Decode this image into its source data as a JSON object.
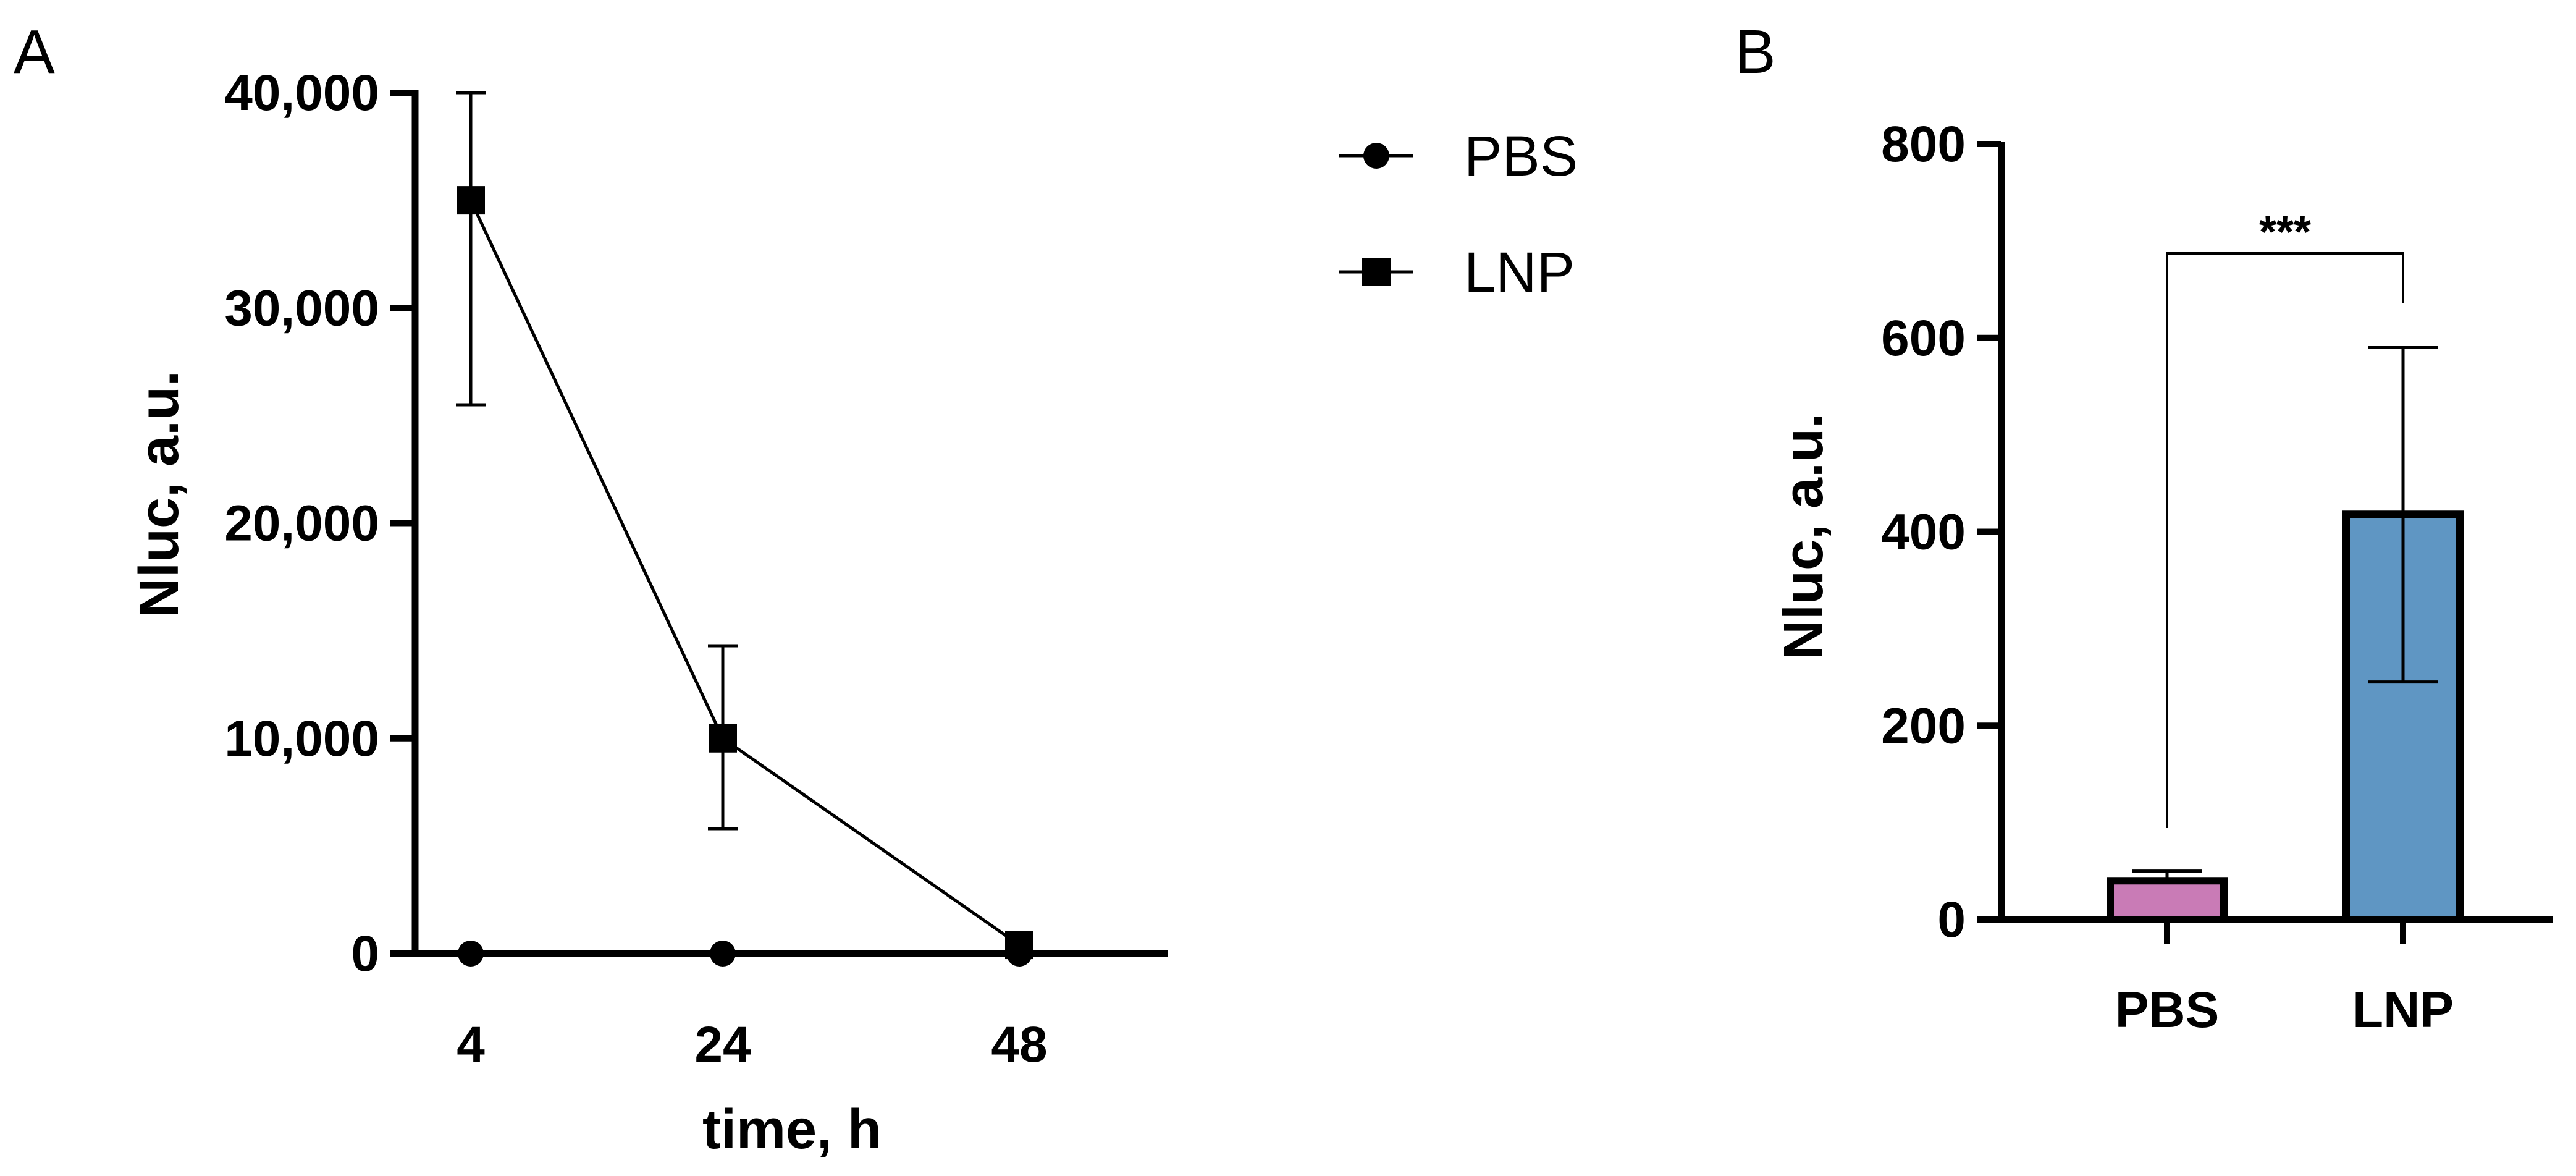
{
  "chart_data": [
    {
      "panel": "A",
      "type": "line",
      "x": [
        4,
        24,
        48
      ],
      "xticks": [
        "4",
        "24",
        "48"
      ],
      "xlabel": "time, h",
      "ylabel": "Nluc, a.u.",
      "ylim": [
        0,
        40000
      ],
      "yticks": [
        "0",
        "10,000",
        "20,000",
        "30,000",
        "40,000"
      ],
      "grid": false,
      "legend_position": "top-right",
      "series": [
        {
          "name": "PBS",
          "marker": "circle",
          "values": [
            0,
            0,
            0
          ],
          "error": [
            0,
            0,
            0
          ]
        },
        {
          "name": "LNP",
          "marker": "square",
          "values": [
            35000,
            10000,
            400
          ],
          "error_low": [
            25500,
            5800,
            400
          ],
          "error_high": [
            40000,
            14300,
            400
          ]
        }
      ]
    },
    {
      "panel": "B",
      "type": "bar",
      "categories": [
        "PBS",
        "LNP"
      ],
      "values": [
        40,
        418
      ],
      "error_high": [
        50,
        590
      ],
      "error_low": [
        40,
        245
      ],
      "colors": [
        "#c97bb6",
        "#5f96c3"
      ],
      "ylabel": "Nluc, a.u.",
      "xlabel": "",
      "ylim": [
        0,
        800
      ],
      "yticks": [
        "0",
        "200",
        "400",
        "600",
        "800"
      ],
      "grid": false,
      "significance": "***"
    }
  ]
}
